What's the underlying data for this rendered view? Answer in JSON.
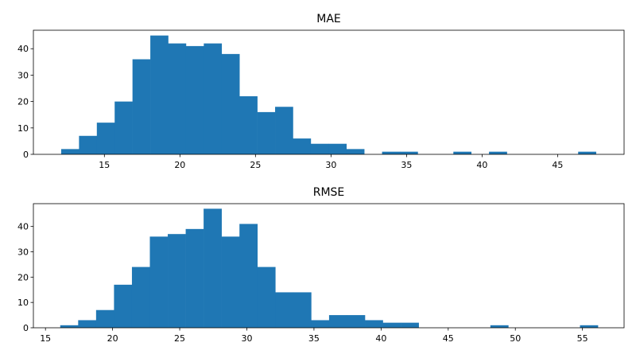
{
  "chart_data": [
    {
      "type": "bar",
      "title": "MAE",
      "xlabel": "",
      "ylabel": "",
      "xlim": [
        10.3,
        49.4
      ],
      "ylim": [
        0,
        47
      ],
      "xticks": [
        15,
        20,
        25,
        30,
        35,
        40,
        45
      ],
      "yticks": [
        0,
        10,
        20,
        30,
        40
      ],
      "grid": false,
      "bin_start": 12.14,
      "bin_width": 1.18,
      "counts": [
        2,
        7,
        12,
        20,
        36,
        45,
        42,
        41,
        42,
        38,
        22,
        16,
        18,
        6,
        4,
        4,
        2,
        0,
        1,
        1,
        0,
        0,
        1,
        0,
        1,
        0,
        0,
        0,
        0,
        1
      ],
      "color": "#1f77b4"
    },
    {
      "type": "bar",
      "title": "RMSE",
      "xlabel": "",
      "ylabel": "",
      "xlim": [
        14.1,
        58.1
      ],
      "ylim": [
        0,
        49
      ],
      "xticks": [
        15,
        20,
        25,
        30,
        35,
        40,
        45,
        50,
        55
      ],
      "yticks": [
        0,
        10,
        20,
        30,
        40
      ],
      "grid": false,
      "bin_start": 16.1,
      "bin_width": 1.335,
      "counts": [
        1,
        3,
        7,
        17,
        24,
        36,
        37,
        39,
        47,
        36,
        41,
        24,
        14,
        14,
        3,
        5,
        5,
        3,
        2,
        2,
        0,
        0,
        0,
        0,
        1,
        0,
        0,
        0,
        0,
        1
      ],
      "color": "#1f77b4"
    }
  ]
}
